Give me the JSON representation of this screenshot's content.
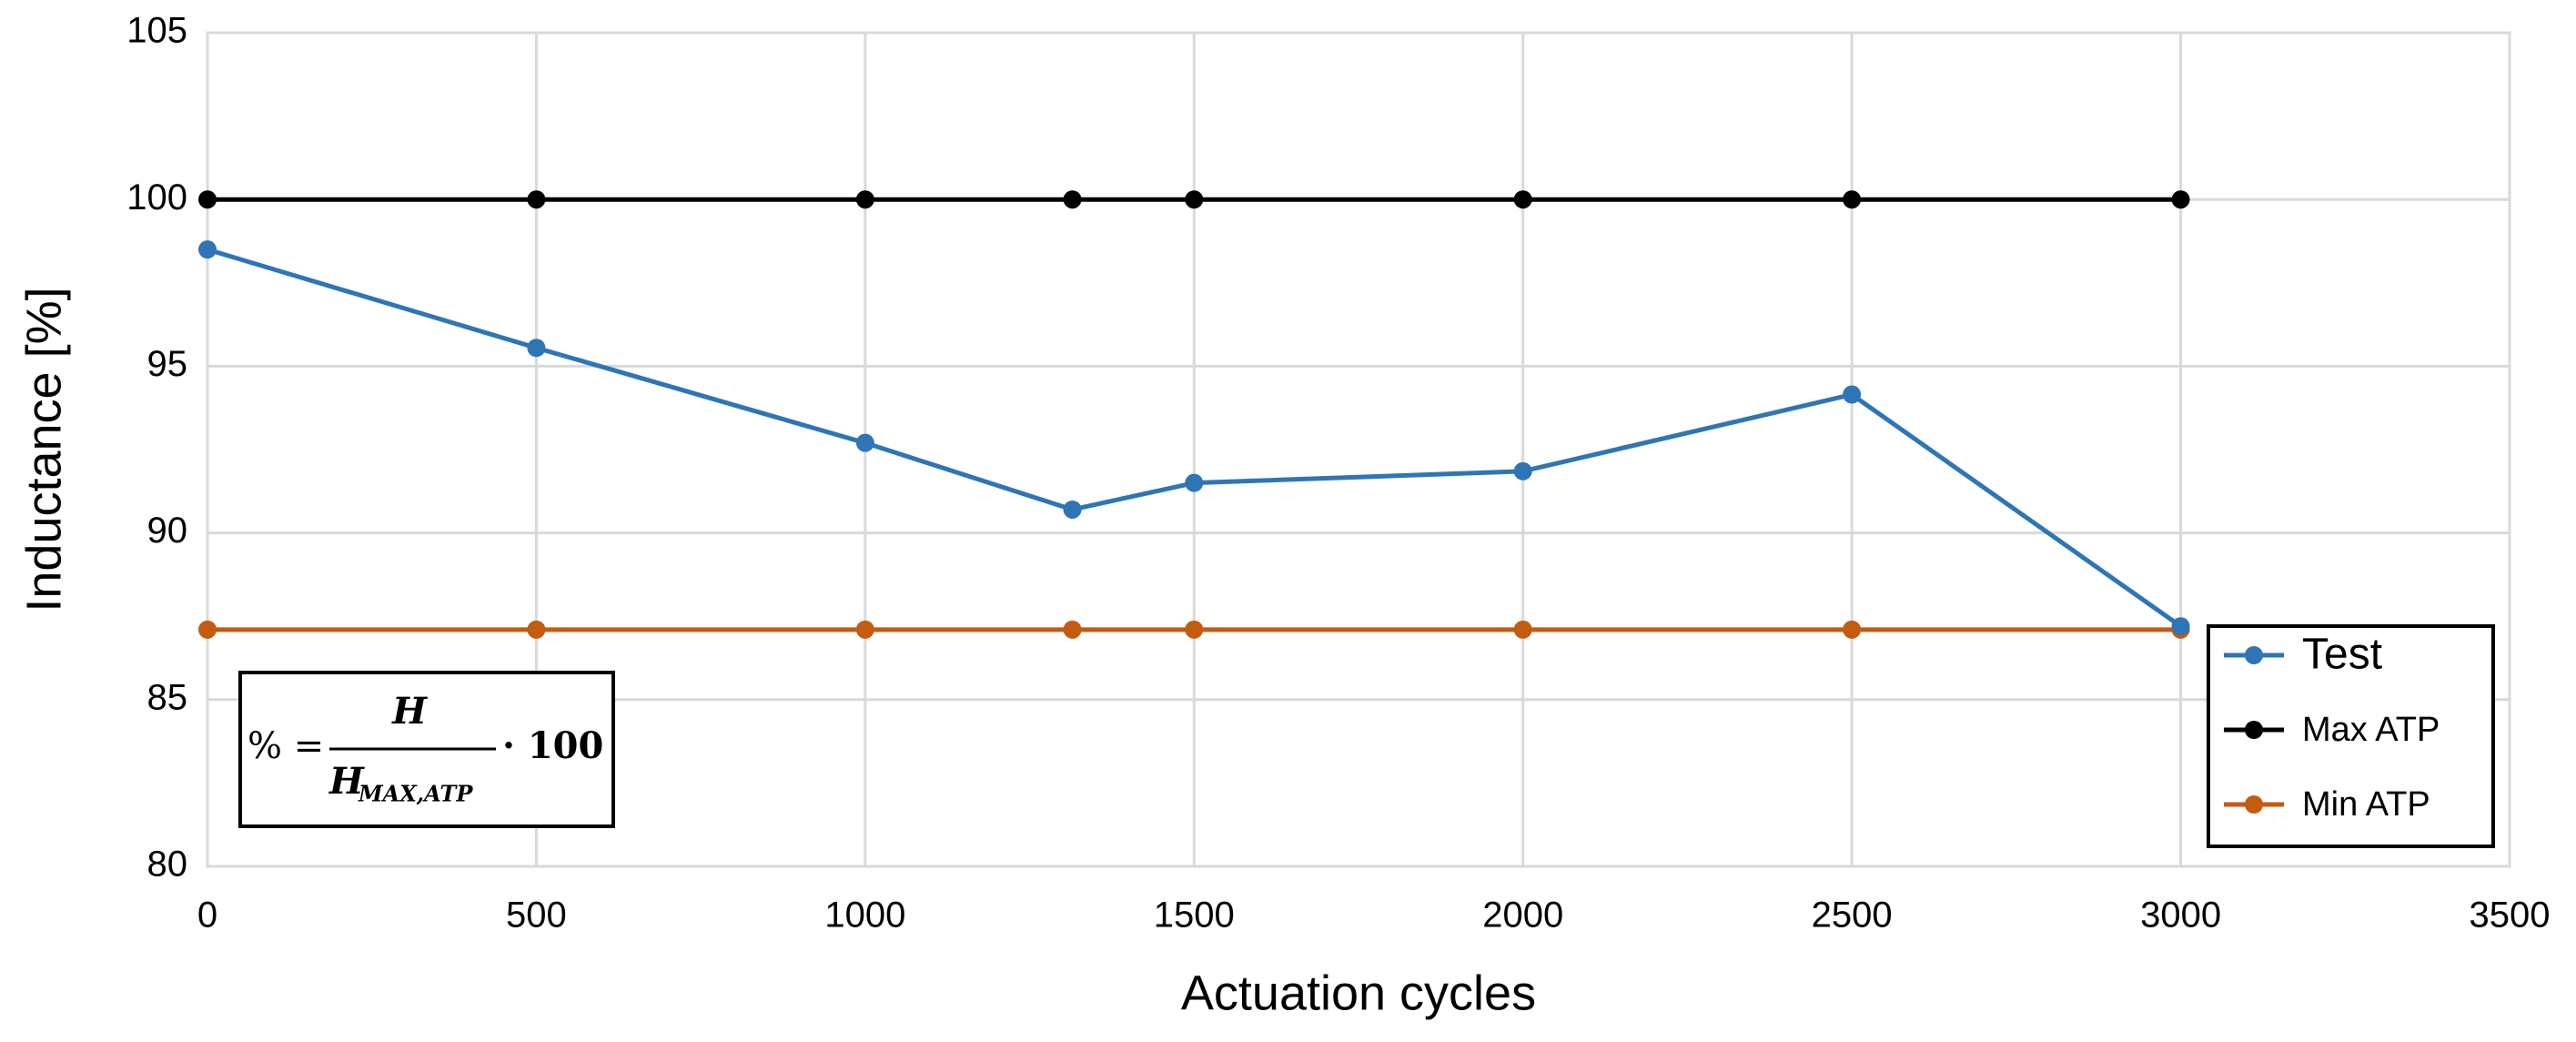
{
  "chart_data": {
    "type": "line",
    "x_label": "Actuation cycles",
    "y_label": "Inductance [%]",
    "x": [
      0,
      500,
      1000,
      1315,
      1500,
      2000,
      2500,
      3000
    ],
    "series": [
      {
        "name": "Test",
        "color": "#2e75b6",
        "values": [
          98.5,
          95.55,
          92.7,
          90.7,
          91.5,
          91.85,
          94.15,
          87.2
        ]
      },
      {
        "name": "Max ATP",
        "color": "#000000",
        "values": [
          100,
          100,
          100,
          100,
          100,
          100,
          100,
          100
        ]
      },
      {
        "name": "Min ATP",
        "color": "#c55a11",
        "values": [
          87.1,
          87.1,
          87.1,
          87.1,
          87.1,
          87.1,
          87.1,
          87.1
        ]
      }
    ],
    "xlim": [
      0,
      3500
    ],
    "xticks": [
      0,
      500,
      1000,
      1500,
      2000,
      2500,
      3000,
      3500
    ],
    "ylim": [
      80,
      105
    ],
    "yticks": [
      80,
      85,
      90,
      95,
      100,
      105
    ],
    "grid": true,
    "legend": "lower right",
    "formula": {
      "lhs": "% =",
      "numerator": "H",
      "denominator": "H",
      "subscript": "MAX,ATP",
      "factor": "· 100"
    }
  }
}
